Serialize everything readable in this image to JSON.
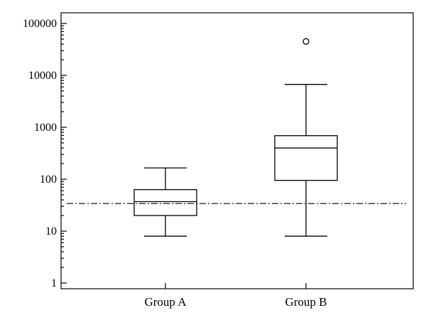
{
  "chart_data": {
    "type": "box",
    "y_scale": "log",
    "ylim": [
      0.8,
      120000
    ],
    "y_ticks": [
      1,
      10,
      100,
      1000,
      10000,
      100000
    ],
    "y_tick_labels": [
      "1",
      "10",
      "100",
      "1000",
      "10000",
      "100000"
    ],
    "minor_ticks": true,
    "grid": false,
    "categories": [
      "Group A",
      "Group B"
    ],
    "boxes": [
      {
        "category": "Group A",
        "whisker_low": 8,
        "q1": 20,
        "median": 37,
        "q3": 63,
        "whisker_high": 165,
        "outliers": []
      },
      {
        "category": "Group B",
        "whisker_low": 8,
        "q1": 95,
        "median": 400,
        "q3": 690,
        "whisker_high": 6700,
        "outliers": [
          45000
        ]
      }
    ],
    "reference_line": {
      "value": 34,
      "style": "dash-dot"
    },
    "colors": {
      "stroke": "#000000",
      "background": "#ffffff"
    }
  }
}
